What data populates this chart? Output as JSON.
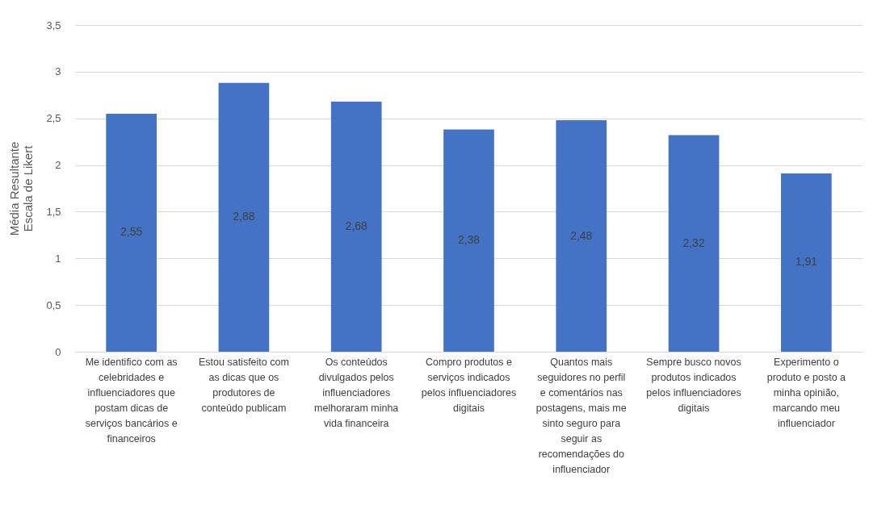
{
  "chart_data": {
    "type": "bar",
    "ylabel": "Média Resultante Escala de Likert",
    "categories": [
      "Me identifico com as celebridades e influenciadores que postam dicas de serviços bancários e financeiros",
      "Estou satisfeito com as dicas que os produtores de conteúdo publicam",
      "Os conteúdos divulgados pelos influenciadores melhoraram minha vida financeira",
      "Compro produtos e serviços indicados pelos influenciadores digitais",
      "Quantos mais seguidores no perfil e comentários nas postagens, mais me sinto seguro para seguir as recomendações do influenciador",
      "Sempre busco novos produtos indicados pelos influenciadores digitais",
      "Experimento o produto e posto a minha opinião, marcando meu influenciador"
    ],
    "values": [
      2.55,
      2.88,
      2.68,
      2.38,
      2.48,
      2.32,
      1.91
    ],
    "value_labels": [
      "2,55",
      "2,88",
      "2,68",
      "2,38",
      "2,48",
      "2,32",
      "1,91"
    ],
    "color": "#4472c4",
    "ylim": [
      0,
      3.5
    ],
    "yticks": [
      0,
      {
        "value": 0.5,
        "label": "0,5"
      },
      1,
      {
        "value": 1.5,
        "label": "1,5"
      },
      2,
      {
        "value": 2.5,
        "label": "2,5"
      },
      3,
      {
        "value": 3.5,
        "label": "3,5"
      }
    ],
    "grid": "y"
  }
}
